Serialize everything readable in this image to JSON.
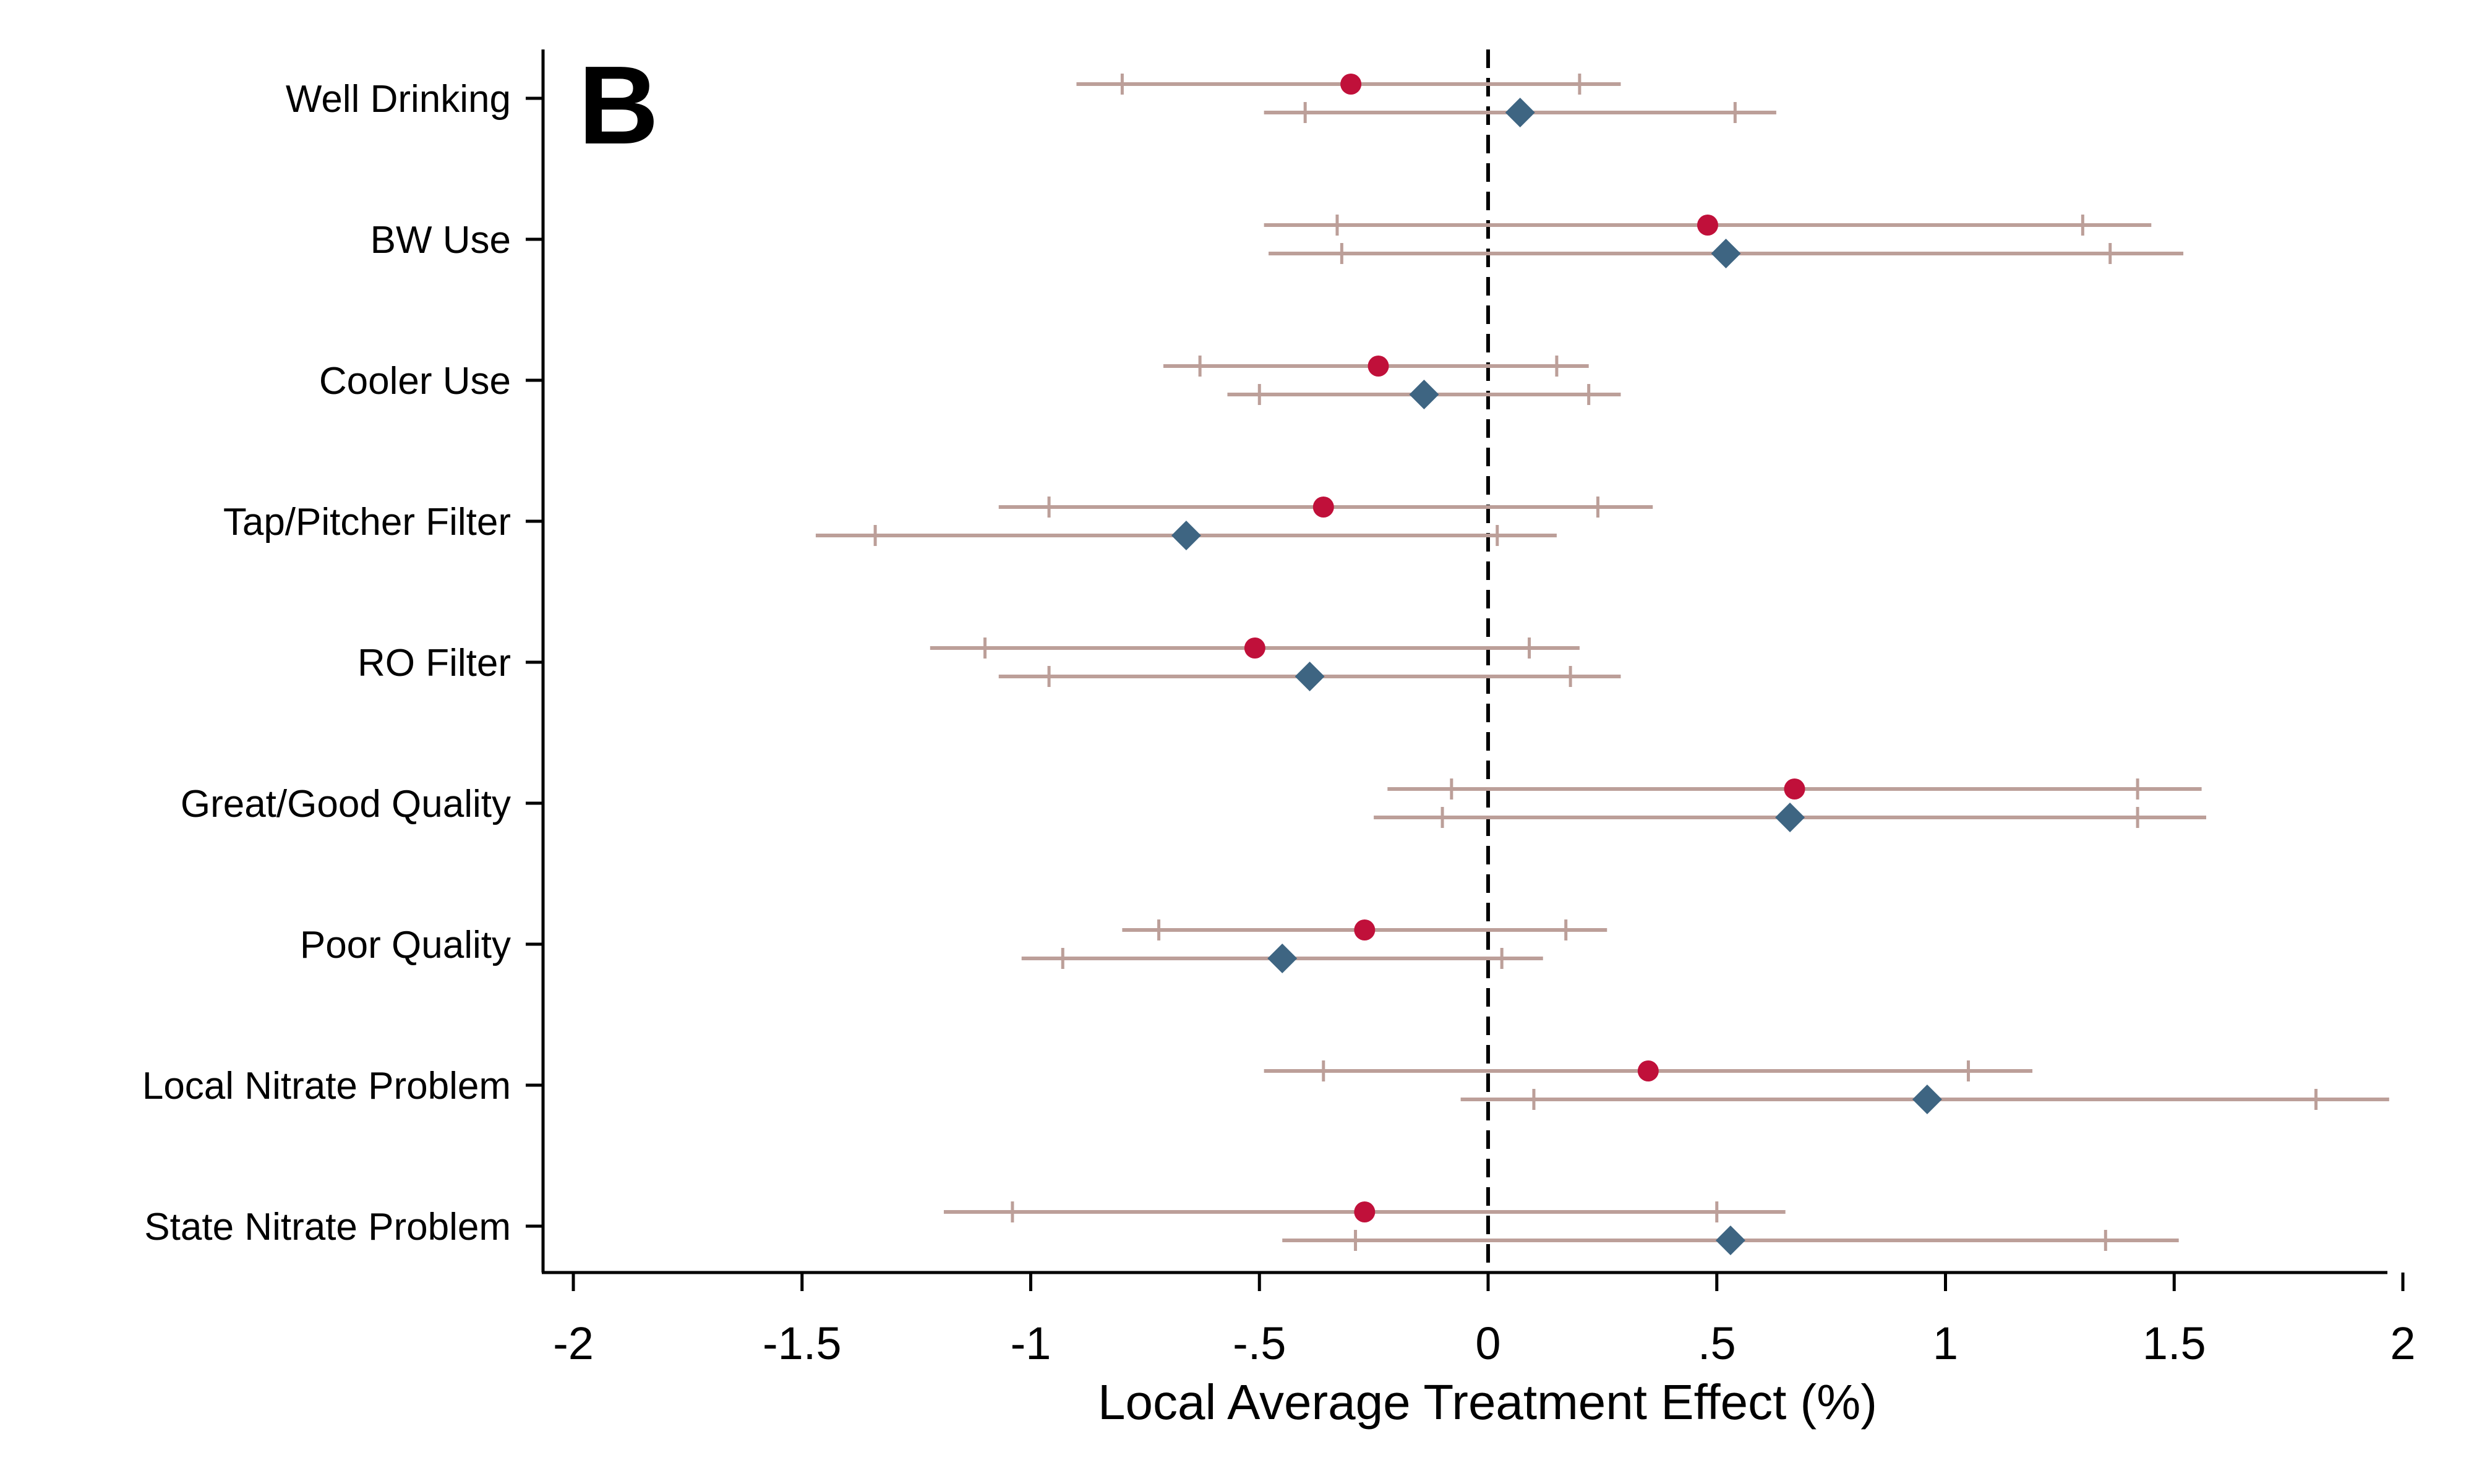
{
  "chart_data": {
    "type": "scatter",
    "panel_label": "B",
    "title": "",
    "xlabel": "Local Average Treatment Effect (%)",
    "ylabel": "",
    "xlim": [
      -2.05,
      2.05
    ],
    "xticks": [
      -2,
      -1.5,
      -1,
      -0.5,
      0,
      0.5,
      1,
      1.5,
      2
    ],
    "xtick_labels": [
      "-2",
      "-1.5",
      "-1",
      "-.5",
      "0",
      ".5",
      "1",
      "1.5",
      "2"
    ],
    "reference_line": {
      "x": 0,
      "style": "dashed"
    },
    "grid": false,
    "legend": "none",
    "categories": [
      "Well Drinking",
      "BW Use",
      "Cooler Use",
      "Tap/Pitcher Filter",
      "RO Filter",
      "Great/Good Quality",
      "Poor Quality",
      "Local Nitrate Problem",
      "State Nitrate Problem"
    ],
    "series": [
      {
        "marker": "circle",
        "color": "#c0103a",
        "points": [
          {
            "estimate": -0.3,
            "ci95": [
              -0.9,
              0.29
            ],
            "ci90": [
              -0.8,
              0.2
            ]
          },
          {
            "estimate": 0.48,
            "ci95": [
              -0.49,
              1.45
            ],
            "ci90": [
              -0.33,
              1.3
            ]
          },
          {
            "estimate": -0.24,
            "ci95": [
              -0.71,
              0.22
            ],
            "ci90": [
              -0.63,
              0.15
            ]
          },
          {
            "estimate": -0.36,
            "ci95": [
              -1.07,
              0.36
            ],
            "ci90": [
              -0.96,
              0.24
            ]
          },
          {
            "estimate": -0.51,
            "ci95": [
              -1.22,
              0.2
            ],
            "ci90": [
              -1.1,
              0.09
            ]
          },
          {
            "estimate": 0.67,
            "ci95": [
              -0.22,
              1.56
            ],
            "ci90": [
              -0.08,
              1.42
            ]
          },
          {
            "estimate": -0.27,
            "ci95": [
              -0.8,
              0.26
            ],
            "ci90": [
              -0.72,
              0.17
            ]
          },
          {
            "estimate": 0.35,
            "ci95": [
              -0.49,
              1.19
            ],
            "ci90": [
              -0.36,
              1.05
            ]
          },
          {
            "estimate": -0.27,
            "ci95": [
              -1.19,
              0.65
            ],
            "ci90": [
              -1.04,
              0.5
            ]
          }
        ]
      },
      {
        "marker": "diamond",
        "color": "#3e6582",
        "points": [
          {
            "estimate": 0.07,
            "ci95": [
              -0.49,
              0.63
            ],
            "ci90": [
              -0.4,
              0.54
            ]
          },
          {
            "estimate": 0.52,
            "ci95": [
              -0.48,
              1.52
            ],
            "ci90": [
              -0.32,
              1.36
            ]
          },
          {
            "estimate": -0.14,
            "ci95": [
              -0.57,
              0.29
            ],
            "ci90": [
              -0.5,
              0.22
            ]
          },
          {
            "estimate": -0.66,
            "ci95": [
              -1.47,
              0.15
            ],
            "ci90": [
              -1.34,
              0.02
            ]
          },
          {
            "estimate": -0.39,
            "ci95": [
              -1.07,
              0.29
            ],
            "ci90": [
              -0.96,
              0.18
            ]
          },
          {
            "estimate": 0.66,
            "ci95": [
              -0.25,
              1.57
            ],
            "ci90": [
              -0.1,
              1.42
            ]
          },
          {
            "estimate": -0.45,
            "ci95": [
              -1.02,
              0.12
            ],
            "ci90": [
              -0.93,
              0.03
            ]
          },
          {
            "estimate": 0.96,
            "ci95": [
              -0.06,
              1.97
            ],
            "ci90": [
              0.1,
              1.81
            ]
          },
          {
            "estimate": 0.53,
            "ci95": [
              -0.45,
              1.51
            ],
            "ci90": [
              -0.29,
              1.35
            ]
          }
        ]
      }
    ],
    "ci_color": "#bc9f99",
    "axis_color": "#000000"
  }
}
